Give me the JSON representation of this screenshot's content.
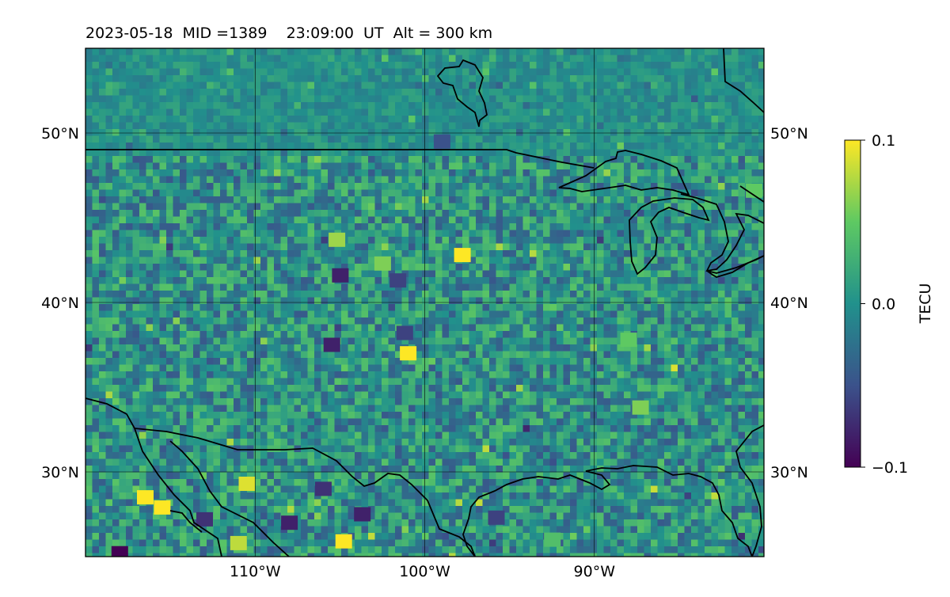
{
  "title": "2023-05-18  MID =1389    23:09:00  UT  Alt = 300 km",
  "map": {
    "lon_range": [
      -120,
      -80
    ],
    "lat_range": [
      25,
      55
    ],
    "lat_ticks": [
      {
        "value": 30,
        "label": "30°N"
      },
      {
        "value": 40,
        "label": "40°N"
      },
      {
        "value": 50,
        "label": "50°N"
      }
    ],
    "lon_ticks": [
      {
        "value": -110,
        "label": "110°W"
      },
      {
        "value": -100,
        "label": "100°W"
      },
      {
        "value": -90,
        "label": "90°W"
      }
    ],
    "grid": true
  },
  "colorbar": {
    "label": "TECU",
    "min": -0.1,
    "max": 0.1,
    "ticks": [
      {
        "value": 0.1,
        "label": "0.1"
      },
      {
        "value": 0.0,
        "label": "0.0"
      },
      {
        "value": -0.1,
        "label": "−0.1"
      }
    ],
    "colormap": "viridis",
    "stops": [
      "#440154",
      "#3b528b",
      "#21918c",
      "#5ec962",
      "#fde725"
    ]
  },
  "chart_data": {
    "type": "heatmap",
    "title": "2023-05-18  MID =1389    23:09:00  UT  Alt = 300 km",
    "xlim": [
      -120,
      -80
    ],
    "ylim": [
      25,
      55
    ],
    "value_range": [
      -0.1,
      0.1
    ],
    "background_value": 0.0,
    "colorbar_label": "TECU",
    "highlights": [
      {
        "lon": -97.8,
        "lat": 42.8,
        "value": 0.1
      },
      {
        "lon": -101.0,
        "lat": 37.0,
        "value": 0.1
      },
      {
        "lon": -104.8,
        "lat": 25.9,
        "value": 0.1
      },
      {
        "lon": -116.5,
        "lat": 28.5,
        "value": 0.1
      },
      {
        "lon": -115.5,
        "lat": 27.9,
        "value": 0.1
      },
      {
        "lon": -110.5,
        "lat": 29.3,
        "value": 0.09
      },
      {
        "lon": -111.0,
        "lat": 25.8,
        "value": 0.08
      },
      {
        "lon": -87.3,
        "lon_note": "",
        "lat": 33.8,
        "value": 0.06
      },
      {
        "lon": -88.0,
        "lat": 37.8,
        "value": 0.05
      },
      {
        "lon": -92.5,
        "lat": 26.0,
        "value": 0.04
      },
      {
        "lon": -80.6,
        "lat": 46.6,
        "value": 0.05
      },
      {
        "lon": -102.5,
        "lat": 42.3,
        "value": 0.06
      },
      {
        "lon": -105.2,
        "lat": 43.7,
        "value": 0.07
      },
      {
        "lon": -118.0,
        "lat": 25.2,
        "value": -0.1
      },
      {
        "lon": -106.0,
        "lat": 29.0,
        "value": -0.07
      },
      {
        "lon": -108.0,
        "lat": 27.0,
        "value": -0.08
      },
      {
        "lon": -103.7,
        "lat": 27.5,
        "value": -0.08
      },
      {
        "lon": -105.0,
        "lat": 41.6,
        "value": -0.08
      },
      {
        "lon": -101.6,
        "lat": 41.3,
        "value": -0.06
      },
      {
        "lon": -105.5,
        "lat": 37.5,
        "value": -0.08
      },
      {
        "lon": -101.2,
        "lat": 38.2,
        "value": -0.06
      },
      {
        "lon": -95.8,
        "lat": 27.3,
        "value": -0.06
      },
      {
        "lon": -113.0,
        "lat": 27.2,
        "value": -0.07
      },
      {
        "lon": -99.0,
        "lat": 49.5,
        "value": -0.05
      }
    ]
  }
}
